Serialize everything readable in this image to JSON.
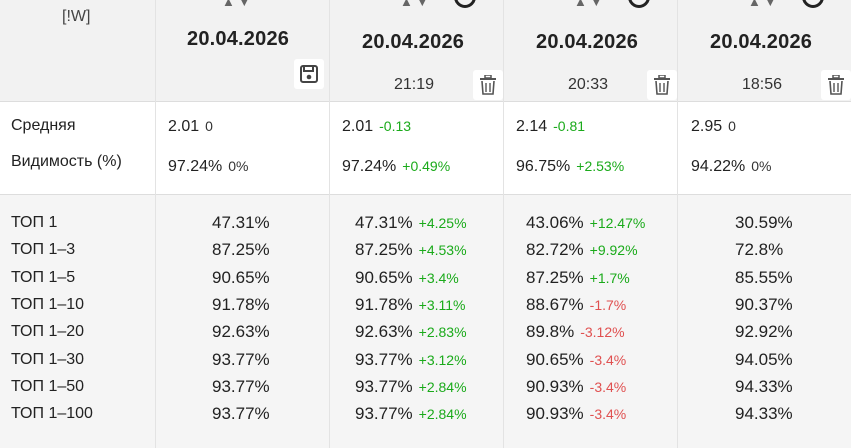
{
  "header": {
    "w_label": "[!W]",
    "columns": [
      {
        "date": "20.04.2026",
        "time": ""
      },
      {
        "date": "20.04.2026",
        "time": "21:19"
      },
      {
        "date": "20.04.2026",
        "time": "20:33"
      },
      {
        "date": "20.04.2026",
        "time": "18:56"
      }
    ],
    "sort_arrows": "▲▼"
  },
  "metrics": {
    "avg_label": "Средняя",
    "vis_label": "Видимость (%)",
    "avg": [
      {
        "value": "2.01",
        "delta": "0"
      },
      {
        "value": "2.01",
        "delta": "-0.13"
      },
      {
        "value": "2.14",
        "delta": "-0.81"
      },
      {
        "value": "2.95",
        "delta": "0"
      }
    ],
    "vis": [
      {
        "value": "97.24%",
        "delta": "0%"
      },
      {
        "value": "97.24%",
        "delta": "+0.49%"
      },
      {
        "value": "96.75%",
        "delta": "+2.53%"
      },
      {
        "value": "94.22%",
        "delta": "0%"
      }
    ]
  },
  "tops": {
    "labels": [
      "ТОП 1",
      "ТОП 1–3",
      "ТОП 1–5",
      "ТОП 1–10",
      "ТОП 1–20",
      "ТОП 1–30",
      "ТОП 1–50",
      "ТОП 1–100"
    ],
    "col1": [
      "47.31%",
      "87.25%",
      "90.65%",
      "91.78%",
      "92.63%",
      "93.77%",
      "93.77%",
      "93.77%"
    ],
    "col2": [
      {
        "value": "47.31%",
        "delta": "+4.25%"
      },
      {
        "value": "87.25%",
        "delta": "+4.53%"
      },
      {
        "value": "90.65%",
        "delta": "+3.4%"
      },
      {
        "value": "91.78%",
        "delta": "+3.11%"
      },
      {
        "value": "92.63%",
        "delta": "+2.83%"
      },
      {
        "value": "93.77%",
        "delta": "+3.12%"
      },
      {
        "value": "93.77%",
        "delta": "+2.84%"
      },
      {
        "value": "93.77%",
        "delta": "+2.84%"
      }
    ],
    "col3": [
      {
        "value": "43.06%",
        "delta": "+12.47%"
      },
      {
        "value": "82.72%",
        "delta": "+9.92%"
      },
      {
        "value": "87.25%",
        "delta": "+1.7%"
      },
      {
        "value": "88.67%",
        "delta": "-1.7%"
      },
      {
        "value": "89.8%",
        "delta": "-3.12%"
      },
      {
        "value": "90.65%",
        "delta": "-3.4%"
      },
      {
        "value": "90.93%",
        "delta": "-3.4%"
      },
      {
        "value": "90.93%",
        "delta": "-3.4%"
      }
    ],
    "col4": [
      "30.59%",
      "72.8%",
      "85.55%",
      "90.37%",
      "92.92%",
      "94.05%",
      "94.33%",
      "94.33%"
    ]
  },
  "colors": {
    "positive": "#1aaa1a",
    "negative": "#e05050",
    "header_bg": "#f2f2f2"
  },
  "icons": {
    "save": "save-icon",
    "delete": "trash-icon"
  }
}
